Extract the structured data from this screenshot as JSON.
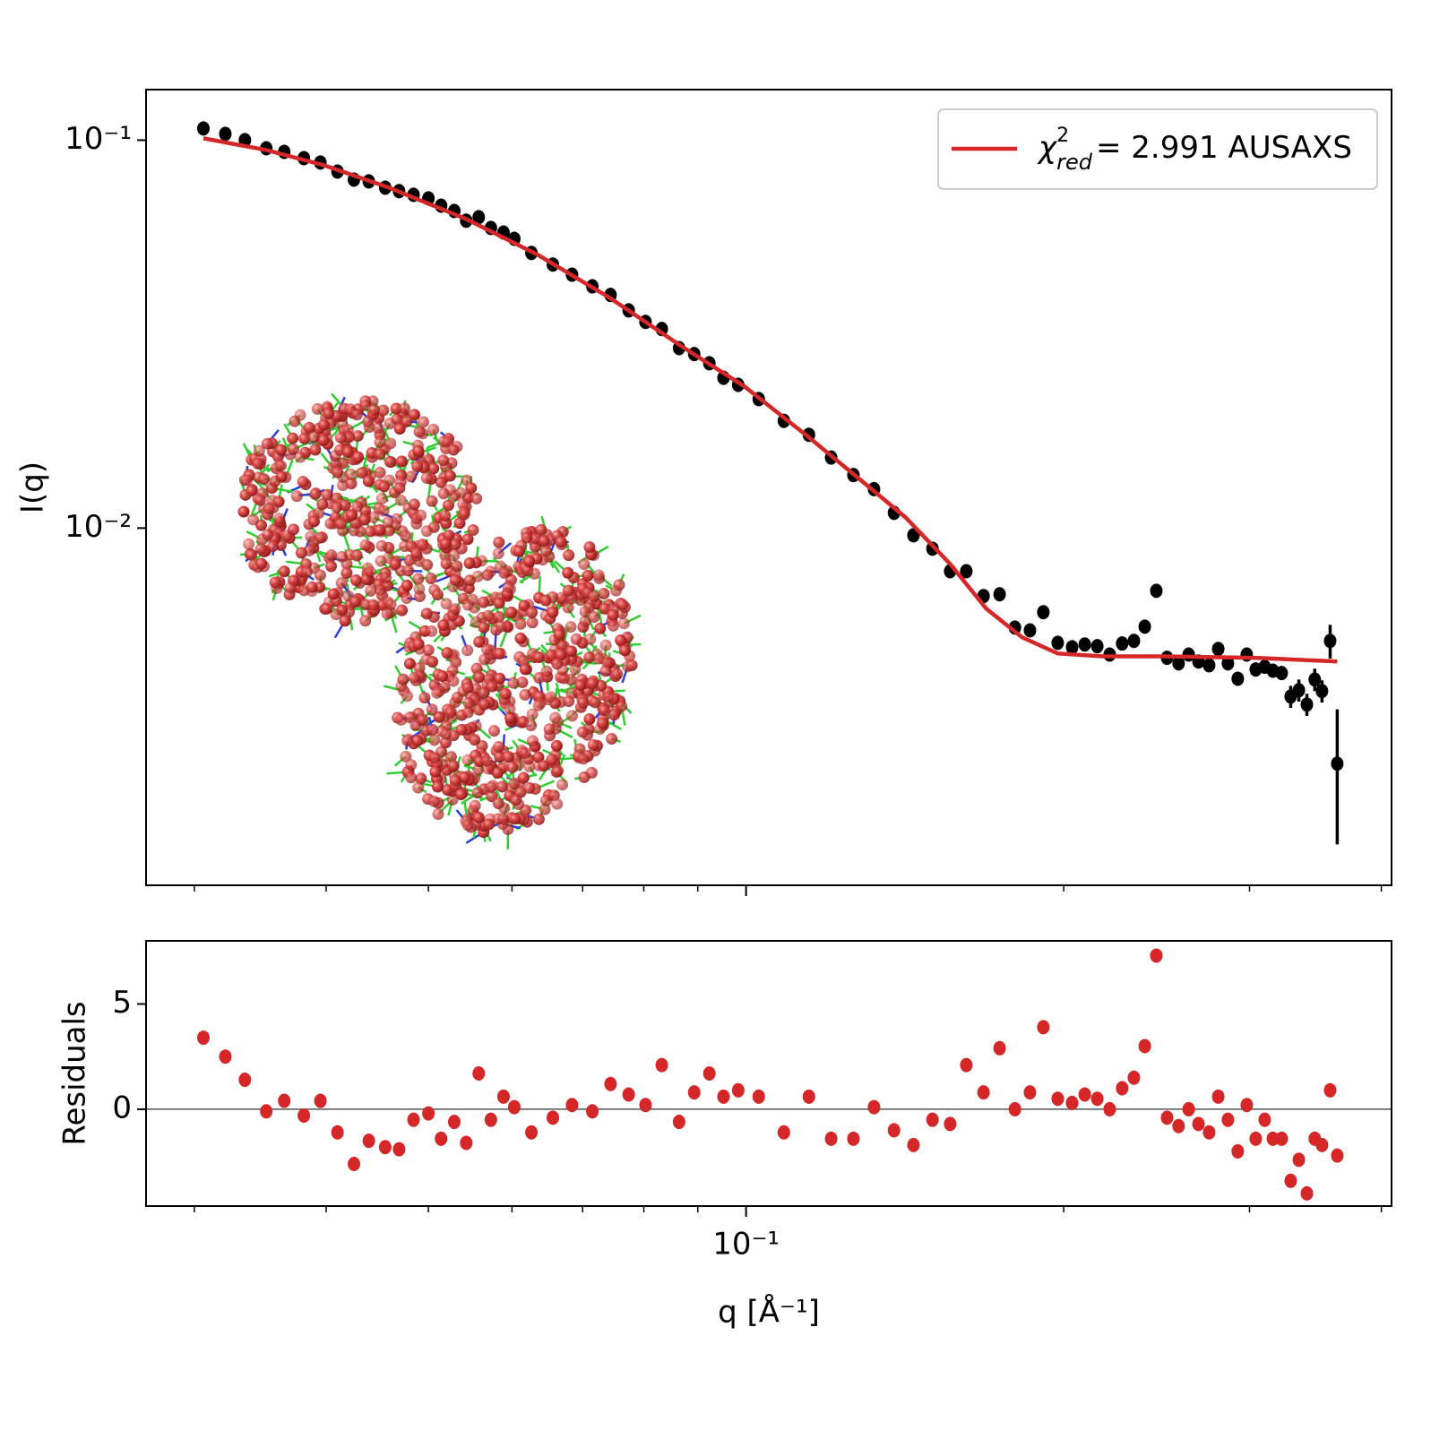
{
  "chart_data": [
    {
      "type": "scatter",
      "ylabel": "I(q)",
      "log_x": true,
      "log_y": true,
      "xlim": [
        0.027,
        0.409
      ],
      "ylim": [
        0.0012,
        0.135
      ],
      "xticks": [
        0.1
      ],
      "xticklabels": false,
      "xminorticks": [
        0.03,
        0.04,
        0.05,
        0.06,
        0.07,
        0.08,
        0.09,
        0.2,
        0.3,
        0.4
      ],
      "yticks": [
        {
          "value": 0.1,
          "label": "10⁻¹"
        },
        {
          "value": 0.01,
          "label": "10⁻²"
        }
      ],
      "legend": "upper right",
      "x": [
        0.0306,
        0.0321,
        0.0335,
        0.0351,
        0.0365,
        0.0381,
        0.0395,
        0.041,
        0.0425,
        0.0439,
        0.0455,
        0.0469,
        0.0484,
        0.05,
        0.0514,
        0.0529,
        0.0543,
        0.0558,
        0.0573,
        0.0589,
        0.0603,
        0.0626,
        0.0656,
        0.0684,
        0.0715,
        0.0744,
        0.0774,
        0.0803,
        0.0832,
        0.0864,
        0.0893,
        0.0923,
        0.0952,
        0.0983,
        0.1028,
        0.1086,
        0.1147,
        0.1204,
        0.1264,
        0.1322,
        0.1381,
        0.1441,
        0.1502,
        0.1561,
        0.1617,
        0.1679,
        0.1739,
        0.1798,
        0.1858,
        0.1913,
        0.1974,
        0.2037,
        0.2094,
        0.2152,
        0.2211,
        0.2272,
        0.2331,
        0.2387,
        0.2448,
        0.2506,
        0.257,
        0.2627,
        0.2684,
        0.2747,
        0.2802,
        0.2862,
        0.2924,
        0.2982,
        0.3041,
        0.3101,
        0.3157,
        0.3218,
        0.3282,
        0.3341,
        0.34,
        0.3459,
        0.3514,
        0.3577,
        0.3633
      ],
      "series": [
        {
          "color": "#000000",
          "values": [
            0.1072,
            0.1038,
            0.1,
            0.0953,
            0.0933,
            0.0899,
            0.0876,
            0.083,
            0.0791,
            0.0783,
            0.0754,
            0.0739,
            0.0723,
            0.0708,
            0.0678,
            0.0657,
            0.062,
            0.0633,
            0.0594,
            0.0578,
            0.0557,
            0.0512,
            0.0478,
            0.045,
            0.042,
            0.0399,
            0.0364,
            0.034,
            0.0326,
            0.0291,
            0.0281,
            0.0266,
            0.0244,
            0.0234,
            0.0215,
            0.0189,
            0.0174,
            0.0152,
            0.0137,
            0.0126,
            0.01095,
            0.00958,
            0.00885,
            0.00774,
            0.00774,
            0.00668,
            0.00675,
            0.00554,
            0.00545,
            0.00607,
            0.00506,
            0.00493,
            0.00501,
            0.00496,
            0.00472,
            0.00504,
            0.00512,
            0.00557,
            0.00689,
            0.00463,
            0.00448,
            0.00472,
            0.00453,
            0.00443,
            0.00488,
            0.00448,
            0.00409,
            0.00472,
            0.00432,
            0.00439,
            0.00429,
            0.00423,
            0.00368,
            0.00382,
            0.00351,
            0.00407,
            0.0038,
            0.00512,
            0.00247
          ],
          "errors": [
            0.0017,
            0.0017,
            0.0016,
            0.0015,
            0.0015,
            0.0014,
            0.0014,
            0.0013,
            0.0013,
            0.0013,
            0.0012,
            0.0012,
            0.0012,
            0.0011,
            0.0011,
            0.0011,
            0.001,
            0.001,
            0.00095,
            0.00092,
            0.00089,
            0.00082,
            0.00076,
            0.00072,
            0.00067,
            0.00064,
            0.00058,
            0.00054,
            0.00052,
            0.00047,
            0.00045,
            0.00043,
            0.00039,
            0.00037,
            0.00034,
            0.0003,
            0.00028,
            0.00024,
            0.00022,
            0.0002,
            0.00018,
            0.00015,
            0.00014,
            0.00012,
            0.00012,
            0.00011,
            0.00011,
            0.00018,
            0.00017,
            0.00019,
            0.00016,
            0.00016,
            0.00016,
            0.00016,
            0.00015,
            0.00016,
            0.00016,
            0.00018,
            0.00022,
            0.00015,
            0.00014,
            0.00015,
            0.00014,
            0.00014,
            0.00016,
            0.00014,
            0.00013,
            0.00015,
            0.00014,
            0.00014,
            0.00014,
            0.00014,
            0.00024,
            0.00025,
            0.00023,
            0.00027,
            0.00025,
            0.00051,
            0.00094
          ]
        },
        {
          "kind": "line",
          "color": "#d62728",
          "name_prefix": "χ",
          "name_sup": "2",
          "name_sub": "red",
          "name": "= 2.991 AUSAXS",
          "x": [
            0.0306,
            0.0351,
            0.0398,
            0.0459,
            0.0543,
            0.0635,
            0.0743,
            0.0869,
            0.0996,
            0.1142,
            0.1284,
            0.1416,
            0.1561,
            0.1689,
            0.1826,
            0.1974,
            0.2177,
            0.2497,
            0.3035,
            0.3633
          ],
          "values": [
            0.1011,
            0.0943,
            0.0862,
            0.0754,
            0.0626,
            0.0506,
            0.0392,
            0.0294,
            0.0232,
            0.0173,
            0.0133,
            0.01066,
            0.00808,
            0.0062,
            0.00523,
            0.00475,
            0.00467,
            0.00467,
            0.00463,
            0.00453
          ]
        }
      ]
    },
    {
      "type": "scatter",
      "ylabel": "Residuals",
      "xlabel": "q [Å⁻¹]",
      "log_x": true,
      "zero_line": true,
      "xlim": [
        0.027,
        0.409
      ],
      "ylim": [
        -4.6,
        8
      ],
      "xticks": [
        {
          "value": 0.1,
          "label": "10⁻¹"
        }
      ],
      "xminorticks": [
        0.03,
        0.04,
        0.05,
        0.06,
        0.07,
        0.08,
        0.09,
        0.2,
        0.3,
        0.4
      ],
      "yticks": [
        0,
        5
      ],
      "x": [
        0.0306,
        0.0321,
        0.0335,
        0.0351,
        0.0365,
        0.0381,
        0.0395,
        0.041,
        0.0425,
        0.0439,
        0.0455,
        0.0469,
        0.0484,
        0.05,
        0.0514,
        0.0529,
        0.0543,
        0.0558,
        0.0573,
        0.0589,
        0.0603,
        0.0626,
        0.0656,
        0.0684,
        0.0715,
        0.0744,
        0.0774,
        0.0803,
        0.0832,
        0.0864,
        0.0893,
        0.0923,
        0.0952,
        0.0983,
        0.1028,
        0.1086,
        0.1147,
        0.1204,
        0.1264,
        0.1322,
        0.1381,
        0.1441,
        0.1502,
        0.1561,
        0.1617,
        0.1679,
        0.1739,
        0.1798,
        0.1858,
        0.1913,
        0.1974,
        0.2037,
        0.2094,
        0.2152,
        0.2211,
        0.2272,
        0.2331,
        0.2387,
        0.2448,
        0.2506,
        0.257,
        0.2627,
        0.2684,
        0.2747,
        0.2802,
        0.2862,
        0.2924,
        0.2982,
        0.3041,
        0.3101,
        0.3157,
        0.3218,
        0.3282,
        0.3341,
        0.34,
        0.3459,
        0.3514,
        0.3577,
        0.3633
      ],
      "series": [
        {
          "color": "#d62728",
          "values": [
            3.4,
            2.5,
            1.4,
            -0.1,
            0.4,
            -0.3,
            0.4,
            -1.1,
            -2.6,
            -1.5,
            -1.8,
            -1.9,
            -0.5,
            -0.2,
            -1.4,
            -0.6,
            -1.6,
            1.7,
            -0.5,
            0.6,
            0.1,
            -1.1,
            -0.4,
            0.2,
            -0.1,
            1.2,
            0.7,
            0.2,
            2.1,
            -0.6,
            0.8,
            1.7,
            0.6,
            0.9,
            0.6,
            -1.1,
            0.6,
            -1.4,
            -1.4,
            0.1,
            -1.0,
            -1.7,
            -0.5,
            -0.7,
            2.1,
            0.8,
            2.9,
            0.0,
            0.8,
            3.9,
            0.5,
            0.3,
            0.7,
            0.5,
            0.0,
            1.0,
            1.5,
            3.0,
            7.3,
            -0.4,
            -0.8,
            0.0,
            -0.7,
            -1.1,
            0.6,
            -0.5,
            -2.0,
            0.2,
            -1.4,
            -0.5,
            -1.4,
            -1.4,
            -3.4,
            -2.4,
            -4.0,
            -1.4,
            -1.7,
            0.9,
            -2.2
          ]
        }
      ]
    }
  ]
}
